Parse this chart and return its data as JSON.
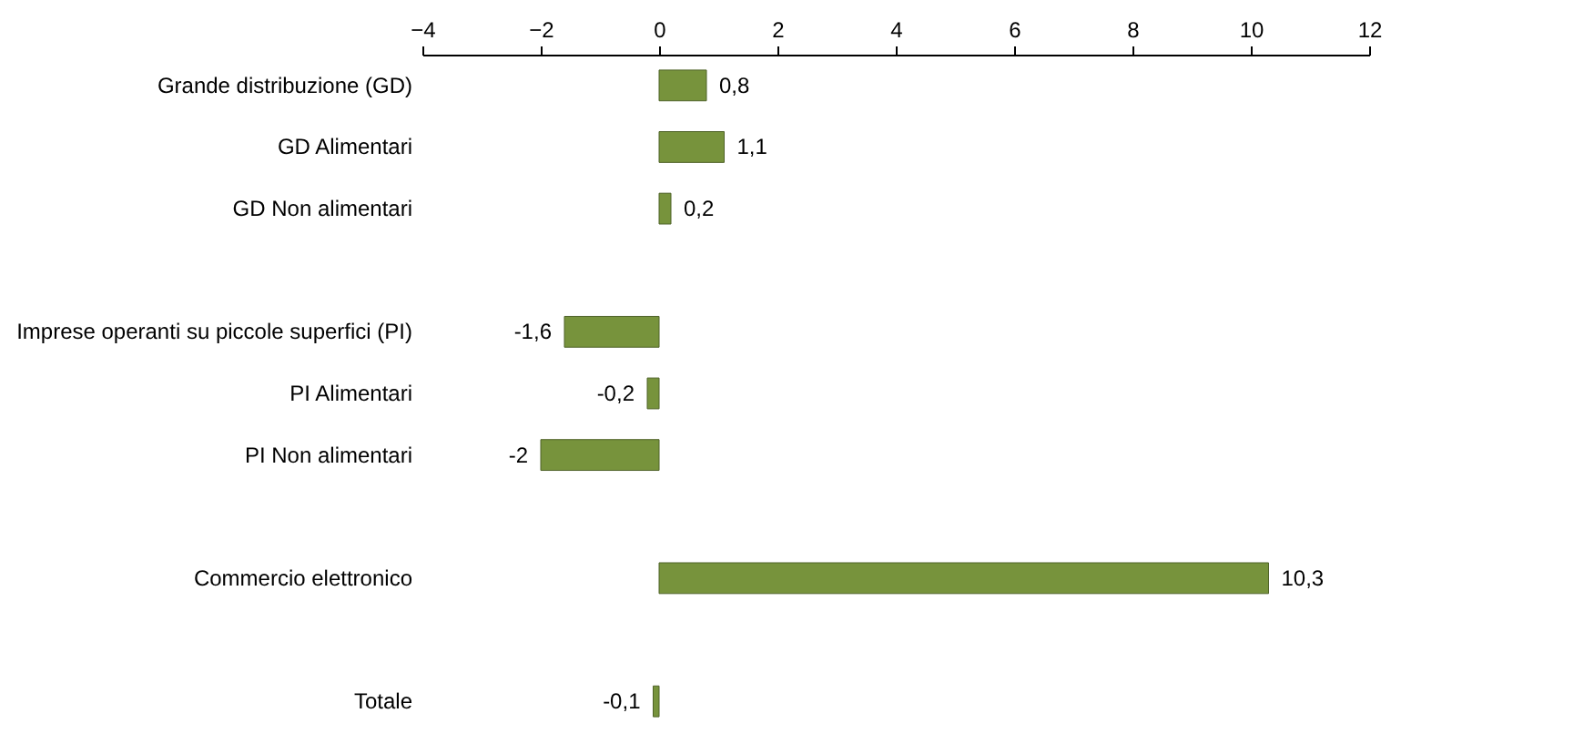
{
  "chart_data": {
    "type": "bar",
    "orientation": "horizontal",
    "categories": [
      "Grande distribuzione (GD)",
      "GD Alimentari",
      "GD Non alimentari",
      null,
      "Imprese operanti su piccole superfici (PI)",
      "PI Alimentari",
      "PI Non alimentari",
      null,
      "Commercio elettronico",
      null,
      "Totale"
    ],
    "values": [
      0.8,
      1.1,
      0.2,
      null,
      -1.6,
      -0.2,
      -2,
      null,
      10.3,
      null,
      -0.1
    ],
    "value_labels": [
      "0,8",
      "1,1",
      "0,2",
      null,
      "-1,6",
      "-0,2",
      "-2",
      null,
      "10,3",
      null,
      "-0,1"
    ],
    "color": "#77933c",
    "xlim": [
      -4,
      12
    ],
    "xticks": [
      -4,
      -2,
      0,
      2,
      4,
      6,
      8,
      10,
      12
    ],
    "grid": false
  }
}
